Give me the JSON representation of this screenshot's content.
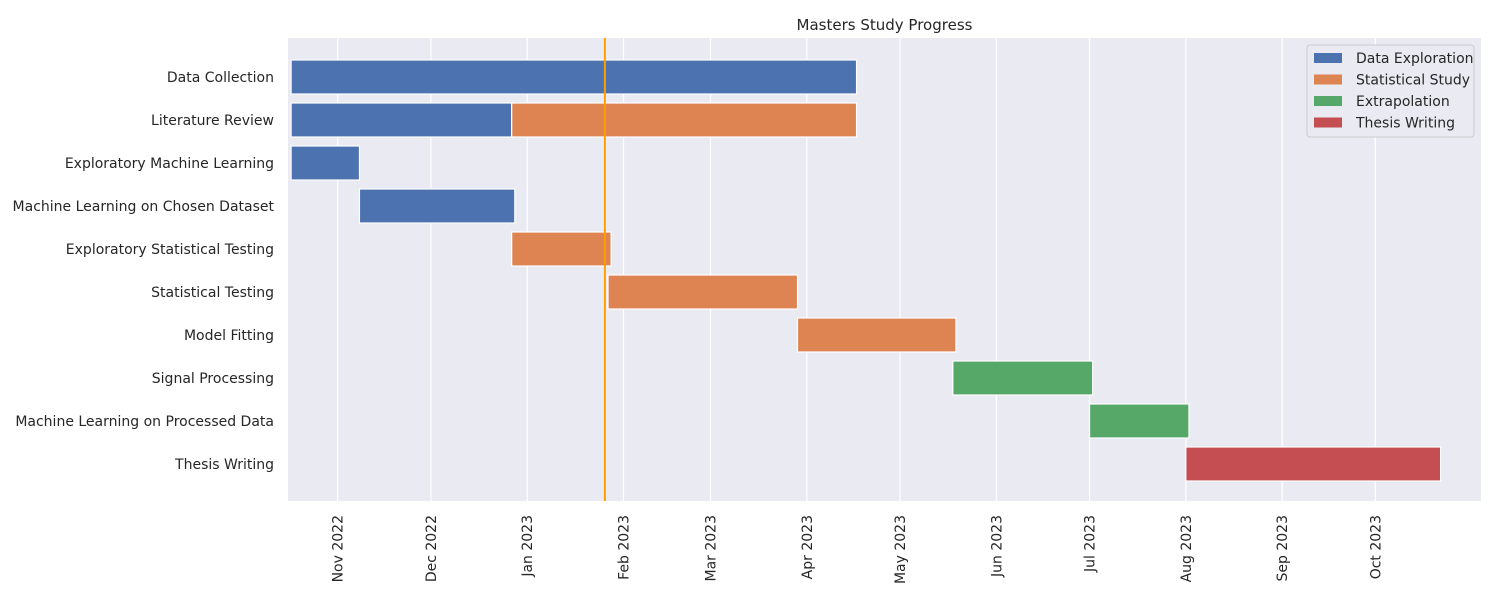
{
  "chart_data": {
    "type": "bar",
    "orientation": "horizontal",
    "title": "Masters Study Progress",
    "xlabel": "",
    "ylabel": "",
    "x_axis": "date",
    "xlim": [
      "2022-10-16",
      "2023-11-04"
    ],
    "grid": true,
    "legend_position": "top-right",
    "tasks": [
      "Data Collection",
      "Literature Review",
      "Exploratory Machine Learning",
      "Machine Learning on Chosen Dataset",
      "Exploratory Statistical Testing",
      "Statistical Testing",
      "Model Fitting",
      "Signal Processing",
      "Machine Learning on Processed Data",
      "Thesis Writing"
    ],
    "series": [
      {
        "name": "Data Exploration",
        "color": "#4c72b0"
      },
      {
        "name": "Statistical Study",
        "color": "#dd8452"
      },
      {
        "name": "Extrapolation",
        "color": "#55a868"
      },
      {
        "name": "Thesis Writing",
        "color": "#c44e52"
      }
    ],
    "bars": [
      {
        "task": "Data Collection",
        "series": "Data Exploration",
        "start": "2022-10-17",
        "end": "2023-04-17"
      },
      {
        "task": "Literature Review",
        "series": "Data Exploration",
        "start": "2022-10-17",
        "end": "2022-12-27"
      },
      {
        "task": "Literature Review",
        "series": "Statistical Study",
        "start": "2022-12-27",
        "end": "2023-04-17"
      },
      {
        "task": "Exploratory Machine Learning",
        "series": "Data Exploration",
        "start": "2022-10-17",
        "end": "2022-11-08"
      },
      {
        "task": "Machine Learning on Chosen Dataset",
        "series": "Data Exploration",
        "start": "2022-11-08",
        "end": "2022-12-28"
      },
      {
        "task": "Exploratory Statistical Testing",
        "series": "Statistical Study",
        "start": "2022-12-27",
        "end": "2023-01-28"
      },
      {
        "task": "Statistical Testing",
        "series": "Statistical Study",
        "start": "2023-01-27",
        "end": "2023-03-29"
      },
      {
        "task": "Model Fitting",
        "series": "Statistical Study",
        "start": "2023-03-29",
        "end": "2023-05-19"
      },
      {
        "task": "Signal Processing",
        "series": "Extrapolation",
        "start": "2023-05-18",
        "end": "2023-07-02"
      },
      {
        "task": "Machine Learning on Processed Data",
        "series": "Extrapolation",
        "start": "2023-07-01",
        "end": "2023-08-02"
      },
      {
        "task": "Thesis Writing",
        "series": "Thesis Writing",
        "start": "2023-08-01",
        "end": "2023-10-22"
      }
    ],
    "x_ticks": [
      {
        "date": "2022-11-01",
        "label": "Nov 2022"
      },
      {
        "date": "2022-12-01",
        "label": "Dec 2022"
      },
      {
        "date": "2023-01-01",
        "label": "Jan 2023"
      },
      {
        "date": "2023-02-01",
        "label": "Feb 2023"
      },
      {
        "date": "2023-03-01",
        "label": "Mar 2023"
      },
      {
        "date": "2023-04-01",
        "label": "Apr 2023"
      },
      {
        "date": "2023-05-01",
        "label": "May 2023"
      },
      {
        "date": "2023-06-01",
        "label": "Jun 2023"
      },
      {
        "date": "2023-07-01",
        "label": "Jul 2023"
      },
      {
        "date": "2023-08-01",
        "label": "Aug 2023"
      },
      {
        "date": "2023-09-01",
        "label": "Sep 2023"
      },
      {
        "date": "2023-10-01",
        "label": "Oct 2023"
      }
    ],
    "today_line": {
      "date": "2023-01-26",
      "color": "#ff9f00"
    },
    "colors": {
      "plot_background": "#eaeaf2",
      "grid": "#ffffff",
      "text": "#262626"
    }
  }
}
